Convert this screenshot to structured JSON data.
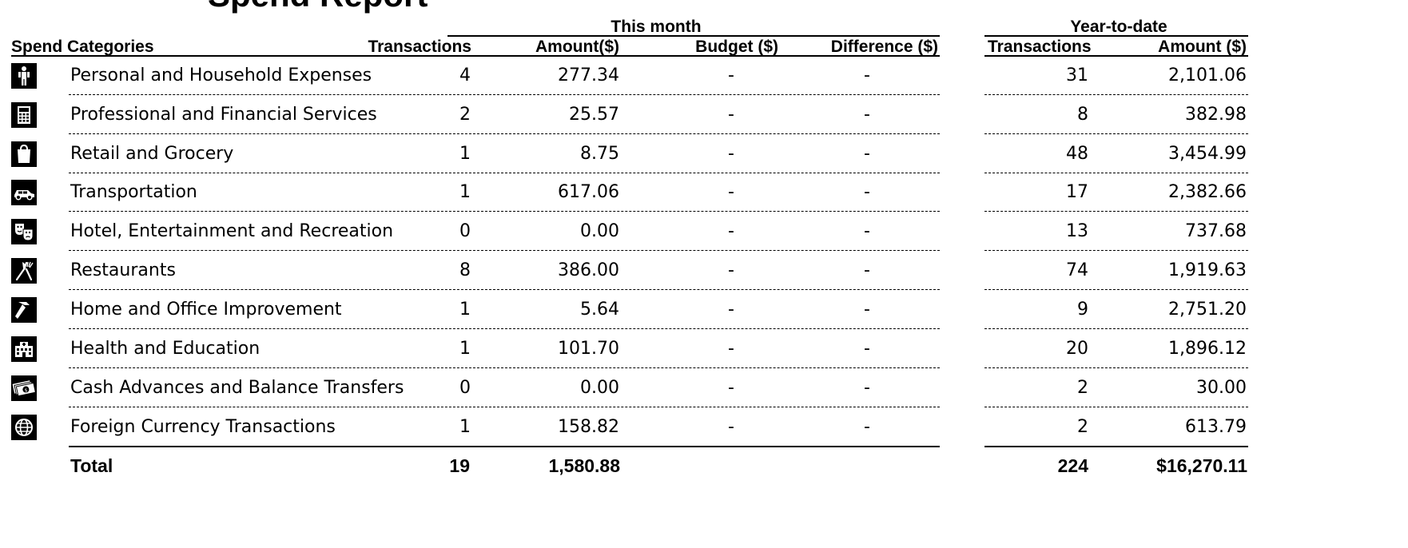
{
  "title": "Spend Report",
  "groups": {
    "this_month": "This month",
    "ytd": "Year-to-date"
  },
  "headers": {
    "category": "Spend Categories",
    "tm_transactions": "Transactions",
    "tm_amount": "Amount($)",
    "tm_budget": "Budget ($)",
    "tm_difference": "Difference ($)",
    "ytd_transactions": "Transactions",
    "ytd_amount": "Amount ($)"
  },
  "rows": [
    {
      "icon": "person-icon",
      "category": "Personal and Household Expenses",
      "tm_transactions": "4",
      "tm_amount": "277.34",
      "budget": "-",
      "difference": "-",
      "ytd_transactions": "31",
      "ytd_amount": "2,101.06"
    },
    {
      "icon": "calculator-icon",
      "category": "Professional and Financial Services",
      "tm_transactions": "2",
      "tm_amount": "25.57",
      "budget": "-",
      "difference": "-",
      "ytd_transactions": "8",
      "ytd_amount": "382.98"
    },
    {
      "icon": "shopping-bag-icon",
      "category": "Retail and Grocery",
      "tm_transactions": "1",
      "tm_amount": "8.75",
      "budget": "-",
      "difference": "-",
      "ytd_transactions": "48",
      "ytd_amount": "3,454.99"
    },
    {
      "icon": "car-icon",
      "category": "Transportation",
      "tm_transactions": "1",
      "tm_amount": "617.06",
      "budget": "-",
      "difference": "-",
      "ytd_transactions": "17",
      "ytd_amount": "2,382.66"
    },
    {
      "icon": "theater-masks-icon",
      "category": "Hotel, Entertainment and Recreation",
      "tm_transactions": "0",
      "tm_amount": "0.00",
      "budget": "-",
      "difference": "-",
      "ytd_transactions": "13",
      "ytd_amount": "737.68"
    },
    {
      "icon": "fork-knife-icon",
      "category": "Restaurants",
      "tm_transactions": "8",
      "tm_amount": "386.00",
      "budget": "-",
      "difference": "-",
      "ytd_transactions": "74",
      "ytd_amount": "1,919.63"
    },
    {
      "icon": "hammer-icon",
      "category": "Home and Office Improvement",
      "tm_transactions": "1",
      "tm_amount": "5.64",
      "budget": "-",
      "difference": "-",
      "ytd_transactions": "9",
      "ytd_amount": "2,751.20"
    },
    {
      "icon": "hospital-icon",
      "category": "Health and Education",
      "tm_transactions": "1",
      "tm_amount": "101.70",
      "budget": "-",
      "difference": "-",
      "ytd_transactions": "20",
      "ytd_amount": "1,896.12"
    },
    {
      "icon": "cash-icon",
      "category": "Cash Advances and Balance Transfers",
      "tm_transactions": "0",
      "tm_amount": "0.00",
      "budget": "-",
      "difference": "-",
      "ytd_transactions": "2",
      "ytd_amount": "30.00"
    },
    {
      "icon": "globe-icon",
      "category": "Foreign Currency Transactions",
      "tm_transactions": "1",
      "tm_amount": "158.82",
      "budget": "-",
      "difference": "-",
      "ytd_transactions": "2",
      "ytd_amount": "613.79"
    }
  ],
  "total": {
    "label": "Total",
    "tm_transactions": "19",
    "tm_amount": "1,580.88",
    "ytd_transactions": "224",
    "ytd_amount": "$16,270.11"
  }
}
